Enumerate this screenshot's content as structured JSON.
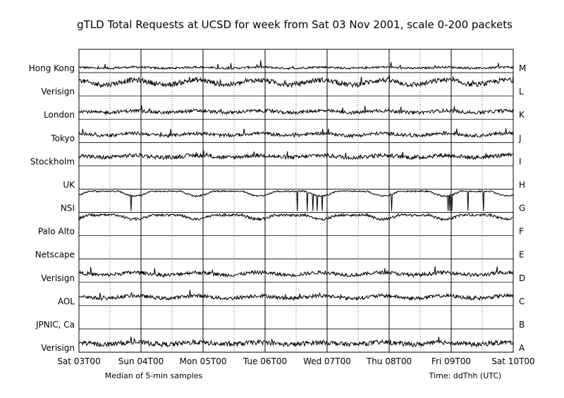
{
  "chart_data": {
    "type": "line",
    "title": "gTLD Total Requests at UCSD for week from Sat 03 Nov 2001, scale 0-200 packets",
    "x_note": "Median of 5-min samples",
    "x_axis_title": "Time: ddThh (UTC)",
    "x_ticks": [
      "Sat 03T00",
      "Sun 04T00",
      "Mon 05T00",
      "Tue 06T00",
      "Wed 07T00",
      "Thu 08T00",
      "Fri 09T00",
      "Sat 10T00"
    ],
    "xlim_days": [
      0,
      7
    ],
    "ylim": [
      0,
      200
    ],
    "grid": true,
    "rows": [
      {
        "letter": "M",
        "name": "Hong Kong",
        "mode": "low",
        "base": 18,
        "amp": 12,
        "noise": 20
      },
      {
        "letter": "L",
        "name": "Verisign",
        "mode": "high",
        "base": 72,
        "amp": 45,
        "noise": 48
      },
      {
        "letter": "K",
        "name": "London",
        "mode": "low",
        "base": 35,
        "amp": 18,
        "noise": 32
      },
      {
        "letter": "J",
        "name": "Tokyo",
        "mode": "low",
        "base": 38,
        "amp": 22,
        "noise": 32
      },
      {
        "letter": "I",
        "name": "Stockholm",
        "mode": "low",
        "base": 48,
        "amp": 20,
        "noise": 40
      },
      {
        "letter": "H",
        "name": "UK",
        "mode": "flat",
        "base": 0,
        "amp": 0,
        "noise": 0
      },
      {
        "letter": "G",
        "name": "NSI",
        "mode": "dip",
        "base": 10,
        "amp": 45,
        "noise": 15
      },
      {
        "letter": "F",
        "name": "Palo Alto",
        "mode": "dip",
        "base": 25,
        "amp": 40,
        "noise": 25
      },
      {
        "letter": "E",
        "name": "Netscape",
        "mode": "flat",
        "base": 0,
        "amp": 0,
        "noise": 0
      },
      {
        "letter": "D",
        "name": "Verisign",
        "mode": "low",
        "base": 40,
        "amp": 25,
        "noise": 35
      },
      {
        "letter": "C",
        "name": "AOL",
        "mode": "low",
        "base": 40,
        "amp": 25,
        "noise": 35
      },
      {
        "letter": "B",
        "name": "JPNIC, Ca",
        "mode": "flat",
        "base": 0,
        "amp": 0,
        "noise": 0
      },
      {
        "letter": "A",
        "name": "Verisign",
        "mode": "low",
        "base": 40,
        "amp": 20,
        "noise": 45
      }
    ]
  }
}
